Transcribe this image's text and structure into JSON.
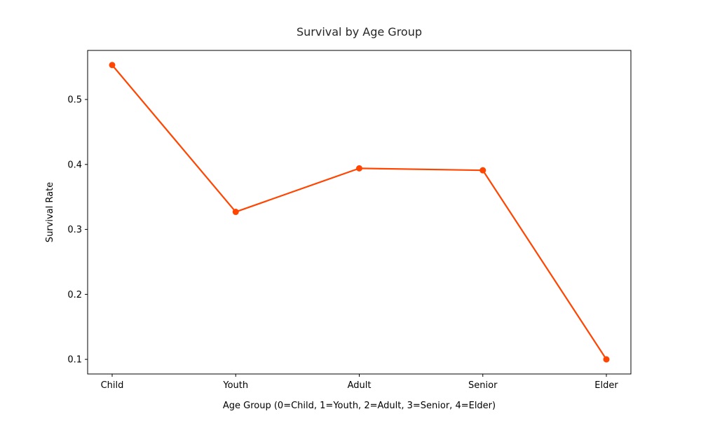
{
  "chart_data": {
    "type": "line",
    "title": "Survival by Age Group",
    "xlabel": "Age Group (0=Child, 1=Youth, 2=Adult, 3=Senior, 4=Elder)",
    "ylabel": "Survival Rate",
    "categories": [
      "Child",
      "Youth",
      "Adult",
      "Senior",
      "Elder"
    ],
    "series": [
      {
        "values": [
          0.553,
          0.327,
          0.394,
          0.391,
          0.1
        ],
        "color": "#ff4500"
      }
    ],
    "ylim": [
      0.0775,
      0.5755
    ],
    "yticks": [
      0.1,
      0.2,
      0.3,
      0.4,
      0.5
    ],
    "ytick_labels": [
      "0.1",
      "0.2",
      "0.3",
      "0.4",
      "0.5"
    ],
    "grid": false,
    "legend": "none"
  }
}
